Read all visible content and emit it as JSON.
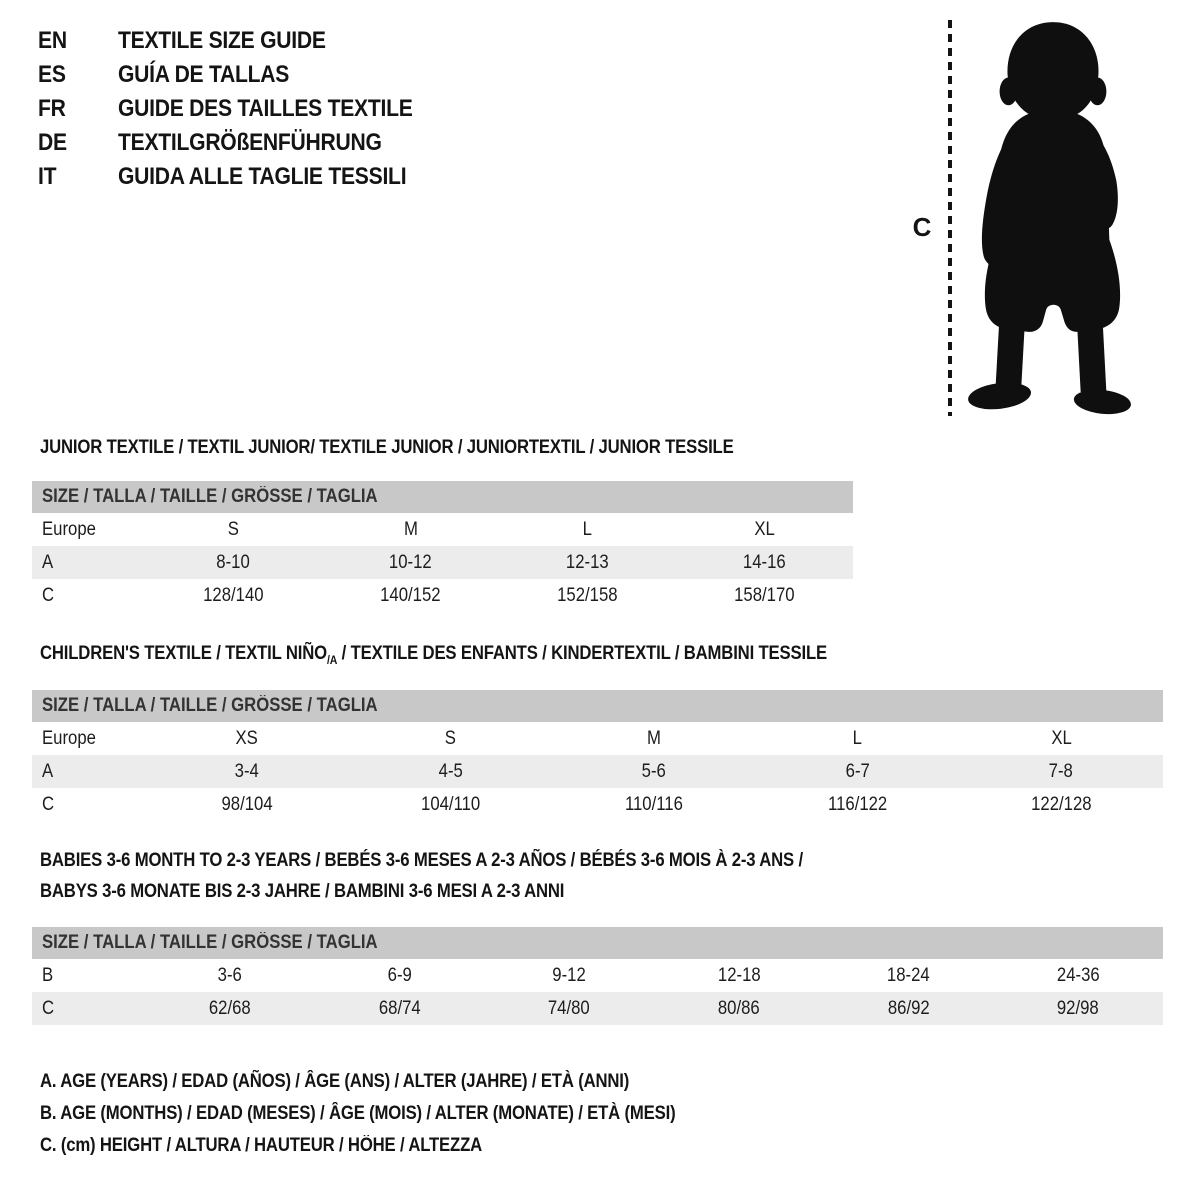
{
  "languages": [
    {
      "code": "EN",
      "label": "TEXTILE SIZE GUIDE"
    },
    {
      "code": "ES",
      "label": "GUÍA DE TALLAS"
    },
    {
      "code": "FR",
      "label": "GUIDE DES TAILLES TEXTILE"
    },
    {
      "code": "DE",
      "label": "TEXTILGRÖßENFÜHRUNG"
    },
    {
      "code": "IT",
      "label": "GUIDA ALLE TAGLIE TESSILI"
    }
  ],
  "figure": {
    "measure_label": "C",
    "silhouette": "baby-toddler-standing"
  },
  "sections": [
    {
      "heading": "JUNIOR TEXTILE / TEXTIL JUNIOR/ TEXTILE JUNIOR / JUNIORTEXTIL / JUNIOR TESSILE",
      "size_header": "SIZE / TALLA / TAILLE / GRÖSSE / TAGLIA",
      "rows": [
        {
          "label": "Europe",
          "values": [
            "S",
            "M",
            "L",
            "XL"
          ]
        },
        {
          "label": "A",
          "values": [
            "8-10",
            "10-12",
            "12-13",
            "14-16"
          ]
        },
        {
          "label": "C",
          "values": [
            "128/140",
            "140/152",
            "152/158",
            "158/170"
          ]
        }
      ]
    },
    {
      "heading_pre": "CHILDREN'S TEXTILE / TEXTIL NIÑO",
      "heading_sub": "/A",
      "heading_post": " / TEXTILE DES ENFANTS / KINDERTEXTIL / BAMBINI TESSILE",
      "size_header": "SIZE / TALLA / TAILLE / GRÖSSE / TAGLIA",
      "rows": [
        {
          "label": "Europe",
          "values": [
            "XS",
            "S",
            "M",
            "L",
            "XL"
          ]
        },
        {
          "label": "A",
          "values": [
            "3-4",
            "4-5",
            "5-6",
            "6-7",
            "7-8"
          ]
        },
        {
          "label": "C",
          "values": [
            "98/104",
            "104/110",
            "110/116",
            "116/122",
            "122/128"
          ]
        }
      ]
    },
    {
      "heading_line1": "BABIES 3-6 MONTH TO 2-3 YEARS / BEBÉS 3-6 MESES A 2-3 AÑOS / BÉBÉS 3-6 MOIS À 2-3 ANS /",
      "heading_line2": "BABYS 3-6 MONATE BIS 2-3 JAHRE / BAMBINI 3-6 MESI A 2-3 ANNI",
      "size_header": "SIZE / TALLA / TAILLE / GRÖSSE / TAGLIA",
      "rows": [
        {
          "label": "B",
          "values": [
            "3-6",
            "6-9",
            "9-12",
            "12-18",
            "18-24",
            "24-36"
          ]
        },
        {
          "label": "C",
          "values": [
            "62/68",
            "68/74",
            "74/80",
            "80/86",
            "86/92",
            "92/98"
          ]
        }
      ]
    }
  ],
  "legend": [
    "A. AGE (YEARS) / EDAD (AÑOS) / ÂGE (ANS) / ALTER (JAHRE) / ETÀ (ANNI)",
    "B. AGE (MONTHS) / EDAD (MESES) / ÂGE (MOIS) / ALTER (MONATE) / ETÀ (MESI)",
    "C. (cm) HEIGHT / ALTURA / HAUTEUR / HÖHE / ALTEZZA"
  ],
  "colors": {
    "background": "#ffffff",
    "ink": "#141414",
    "size_header_bar": "#c8c8c8",
    "row_stripe": "#ececec"
  }
}
